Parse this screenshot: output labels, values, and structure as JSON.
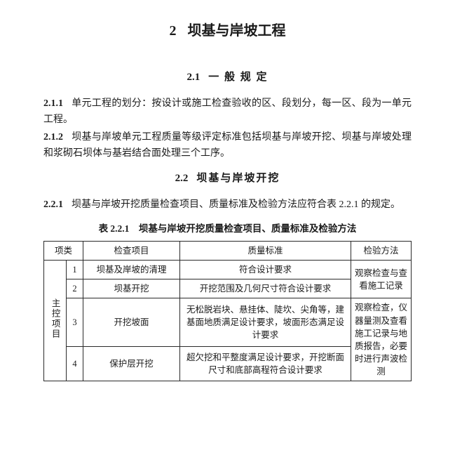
{
  "background_color": "#ffffff",
  "text_color": "#1a1a1a",
  "chapter": {
    "number": "2",
    "title": "坝基与岸坡工程"
  },
  "section_2_1": {
    "number": "2.1",
    "title": "一 般 规 定",
    "clauses": {
      "c1": {
        "num": "2.1.1",
        "text": "单元工程的划分：按设计或施工检查验收的区、段划分，每一区、段为一单元工程。"
      },
      "c2": {
        "num": "2.1.2",
        "text": "坝基与岸坡单元工程质量等级评定标准包括坝基与岸坡开挖、坝基与岸坡处理和浆砌石坝体与基岩结合面处理三个工序。"
      }
    }
  },
  "section_2_2": {
    "number": "2.2",
    "title": "坝基与岸坡开挖",
    "clauses": {
      "c1": {
        "num": "2.2.1",
        "text": "坝基与岸坡开挖质量检查项目、质量标准及检验方法应符合表 2.2.1 的规定。"
      }
    }
  },
  "table": {
    "caption": "表 2.2.1　坝基与岸坡开挖质量检查项目、质量标准及检验方法",
    "headers": {
      "category": "项类",
      "check_item": "检查项目",
      "standard": "质量标准",
      "method": "检验方法"
    },
    "category_label": "主控项目",
    "rows": [
      {
        "no": "1",
        "item": "坝基及岸坡的清理",
        "standard": "符合设计要求",
        "method": "观察检查与查看施工记录"
      },
      {
        "no": "2",
        "item": "坝基开挖",
        "standard": "开挖范围及几何尺寸符合设计要求",
        "method": "观察检查，仪器量测及查看施工记录与地质报告，必要时进行声波检测"
      },
      {
        "no": "3",
        "item": "开挖坡面",
        "standard": "无松脱岩块、悬挂体、陡坎、尖角等，建基面地质满足设计要求，坡面形态满足设计要求",
        "method": ""
      },
      {
        "no": "4",
        "item": "保护层开挖",
        "standard": "超欠挖和平整度满足设计要求，开挖断面尺寸和底部高程符合设计要求",
        "method": ""
      }
    ]
  }
}
